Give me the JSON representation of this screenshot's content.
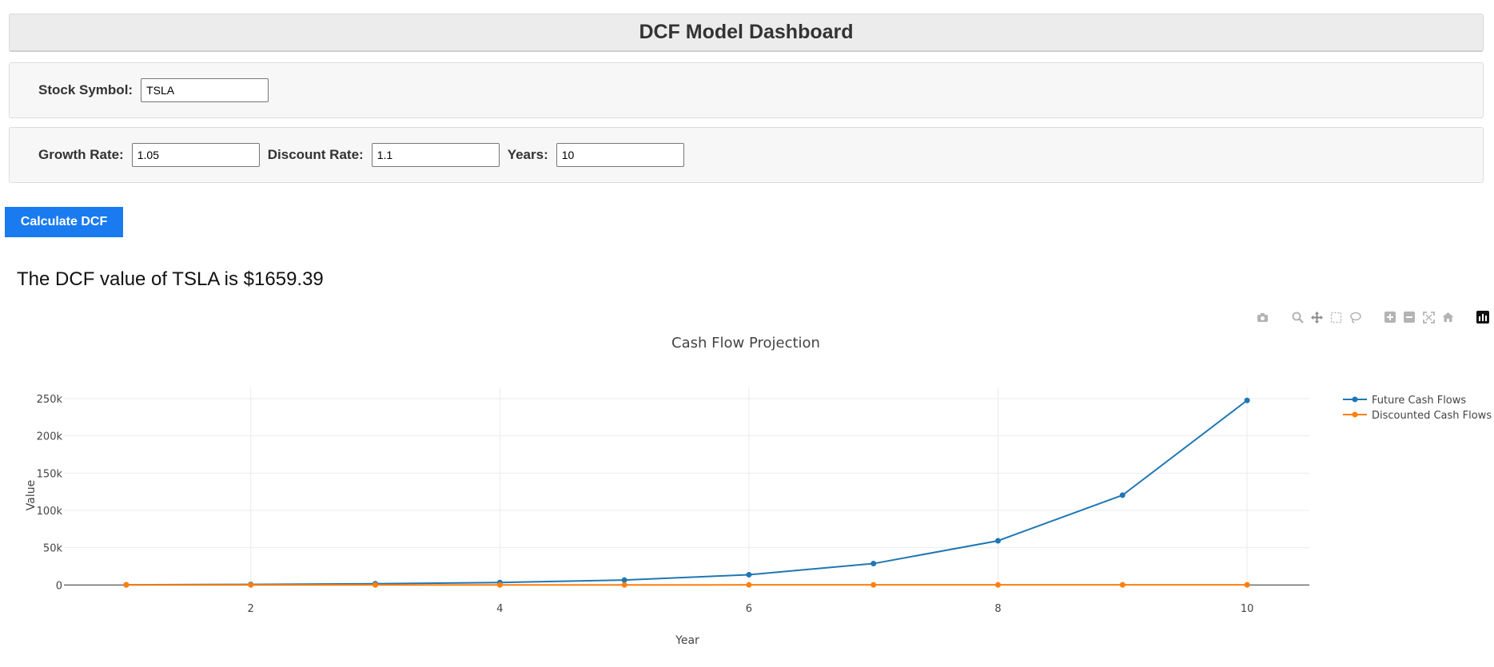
{
  "header": {
    "title": "DCF Model Dashboard"
  },
  "symbol_panel": {
    "label": "Stock Symbol:",
    "value": "TSLA"
  },
  "params_panel": {
    "growth_label": "Growth Rate:",
    "growth_value": "1.05",
    "discount_label": "Discount Rate:",
    "discount_value": "1.1",
    "years_label": "Years:",
    "years_value": "10"
  },
  "calculate_button": {
    "label": "Calculate DCF"
  },
  "result": {
    "text": "The DCF value of TSLA is $1659.39"
  },
  "modebar": {
    "icons": [
      "camera-icon",
      "zoom-icon",
      "pan-icon",
      "box-select-icon",
      "lasso-select-icon",
      "zoom-in-icon",
      "zoom-out-icon",
      "autoscale-icon",
      "reset-axes-icon",
      "plotly-logo-icon"
    ]
  },
  "chart_data": {
    "type": "line",
    "title": "Cash Flow Projection",
    "xlabel": "Year",
    "ylabel": "Value",
    "x": [
      1,
      2,
      3,
      4,
      5,
      6,
      7,
      8,
      9,
      10
    ],
    "xlim": [
      0.5,
      10.5
    ],
    "ylim": [
      -5000,
      265000
    ],
    "xticks": [
      2,
      4,
      6,
      8,
      10
    ],
    "xtick_labels": [
      "2",
      "4",
      "6",
      "8",
      "10"
    ],
    "yticks": [
      0,
      50000,
      100000,
      150000,
      200000,
      250000
    ],
    "ytick_labels": [
      "0",
      "50k",
      "100k",
      "150k",
      "200k",
      "250k"
    ],
    "grid": true,
    "legend": "top-right",
    "series": [
      {
        "name": "Future Cash Flows",
        "color": "#1f77b4",
        "values": [
          200,
          800,
          1700,
          3300,
          6600,
          13800,
          28700,
          59300,
          120500,
          247600
        ]
      },
      {
        "name": "Discounted Cash Flows",
        "color": "#ff7f0e",
        "values": [
          60,
          80,
          100,
          120,
          140,
          160,
          170,
          180,
          190,
          200
        ]
      }
    ]
  }
}
